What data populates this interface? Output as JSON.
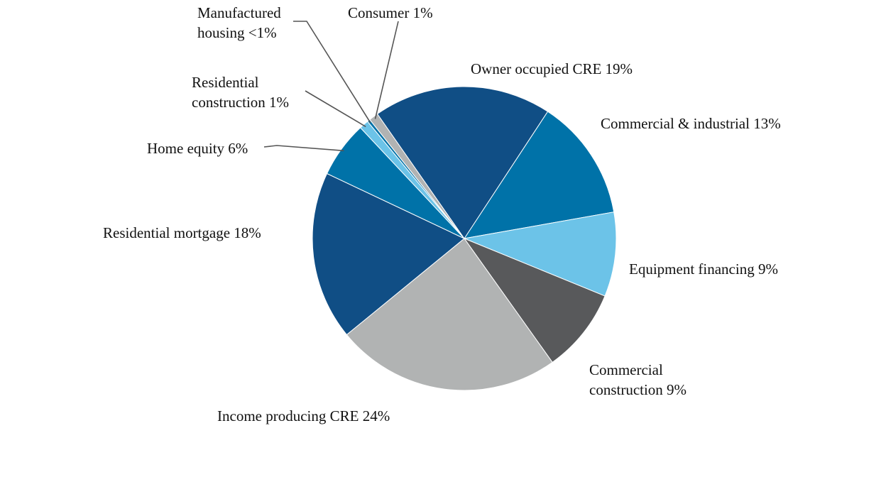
{
  "chart_data": {
    "type": "pie",
    "title": "",
    "start_angle_deg": 33.3,
    "direction": "clockwise",
    "slices": [
      {
        "name": "Commercial & industrial",
        "value": 13,
        "label_lines": [
          "Commercial & industrial 13%"
        ],
        "color": "#0072A8"
      },
      {
        "name": "Equipment financing",
        "value": 9,
        "label_lines": [
          "Equipment financing 9%"
        ],
        "color": "#6CC3E8"
      },
      {
        "name": "Commercial construction",
        "value": 9,
        "label_lines": [
          "Commercial",
          "construction 9%"
        ],
        "color": "#58595B"
      },
      {
        "name": "Income producing CRE",
        "value": 24,
        "label_lines": [
          "Income producing CRE 24%"
        ],
        "color": "#B1B3B3"
      },
      {
        "name": "Residential mortgage",
        "value": 18,
        "label_lines": [
          "Residential mortgage 18%"
        ],
        "color": "#104E85"
      },
      {
        "name": "Home equity",
        "value": 6,
        "label_lines": [
          "Home equity 6%"
        ],
        "color": "#0072A8"
      },
      {
        "name": "Residential construction",
        "value": 1,
        "label_lines": [
          "Residential",
          "construction 1%"
        ],
        "color": "#6CC3E8"
      },
      {
        "name": "Manufactured housing",
        "value": 0.3,
        "label_lines": [
          "Manufactured",
          "housing <1%"
        ],
        "color": "#0072A8"
      },
      {
        "name": "Consumer",
        "value": 1,
        "label_lines": [
          "Consumer 1%"
        ],
        "color": "#B1B3B3"
      },
      {
        "name": "Owner occupied CRE",
        "value": 19,
        "label_lines": [
          "Owner occupied CRE 19%"
        ],
        "color": "#104E85"
      }
    ]
  }
}
